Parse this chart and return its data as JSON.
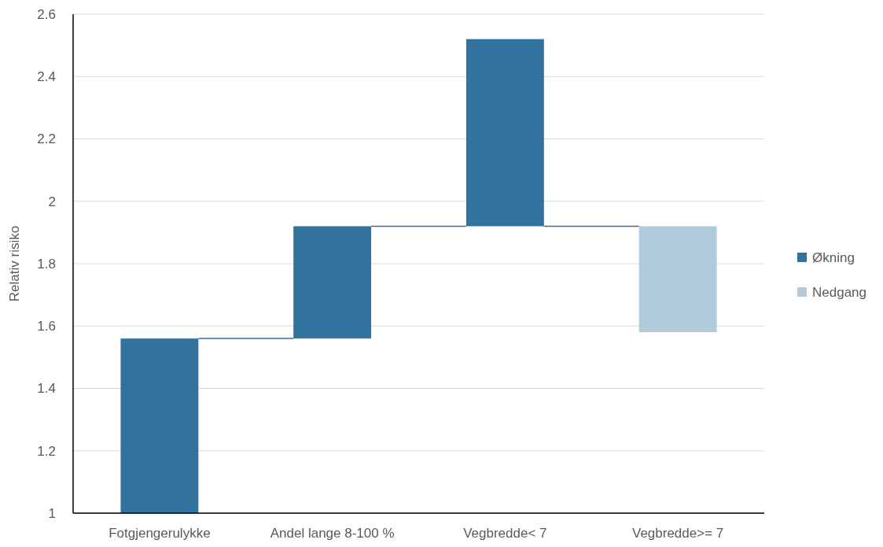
{
  "chart_data": {
    "type": "bar",
    "ylabel": "Relativ risiko",
    "categories": [
      "Fotgjengerulykke",
      "Andel lange 8-100 %",
      "Vegbredde< 7",
      "Vegbredde>= 7"
    ],
    "series": [
      {
        "name": "Økning",
        "color": "#31729f",
        "base": [
          1,
          1.56,
          1.92,
          null
        ],
        "values": [
          0.56,
          0.36,
          0.6,
          null
        ]
      },
      {
        "name": "Nedgang",
        "color": "#afcbdc",
        "base": [
          null,
          null,
          null,
          1.92
        ],
        "values": [
          null,
          null,
          null,
          -0.34
        ]
      }
    ],
    "ylim": [
      1,
      2.6
    ],
    "yticks": [
      1,
      1.2,
      1.4,
      1.6,
      1.8,
      2,
      2.2,
      2.4,
      2.6
    ],
    "grid": "y",
    "legend": "right"
  }
}
